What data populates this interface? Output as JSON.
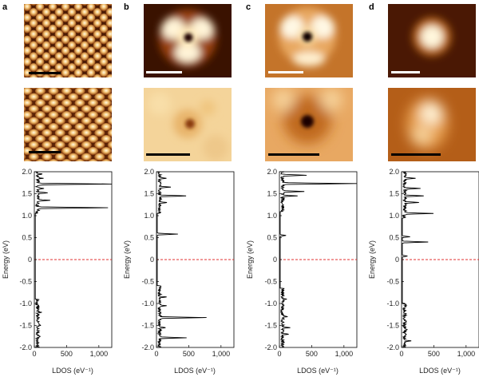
{
  "figure": {
    "panel_labels": [
      "a",
      "b",
      "c",
      "d"
    ],
    "colors": {
      "dark": "#3a1200",
      "mid": "#b8621c",
      "light": "#fff8e6",
      "line": "#000000",
      "fermi": "#e03030"
    }
  },
  "chart_data": [
    {
      "type": "line",
      "panel": "a",
      "xlabel": "LDOS (eV⁻¹)",
      "ylabel": "Energy (eV)",
      "xlim": [
        0,
        1200
      ],
      "ylim": [
        -2.0,
        2.0
      ],
      "xticks": [
        "0",
        "500",
        "1,000"
      ],
      "yticks": [
        "2.0",
        "1.5",
        "1.0",
        "0.5",
        "0",
        "-0.5",
        "-1.0",
        "-1.5",
        "-2.0"
      ],
      "fermi_level": 0,
      "peaks": [
        [
          1.72,
          1150
        ],
        [
          1.18,
          1080
        ],
        [
          1.35,
          200
        ],
        [
          1.52,
          150
        ],
        [
          1.62,
          100
        ],
        [
          1.85,
          80
        ],
        [
          1.95,
          70
        ],
        [
          -1.5,
          60
        ],
        [
          -1.75,
          55
        ],
        [
          -1.2,
          45
        ]
      ],
      "bands": [
        [
          -2.0,
          -0.9
        ],
        [
          1.05,
          2.0
        ]
      ],
      "baseline": 15
    },
    {
      "type": "line",
      "panel": "b",
      "xlabel": "LDOS (eV⁻¹)",
      "ylabel": "Energy (eV)",
      "xlim": [
        0,
        1200
      ],
      "ylim": [
        -2.0,
        2.0
      ],
      "xticks": [
        "0",
        "500",
        "1,000"
      ],
      "yticks": [
        "2.0",
        "1.5",
        "1.0",
        "0.5",
        "0",
        "-0.5",
        "-1.0",
        "-1.5",
        "-2.0"
      ],
      "fermi_level": 0,
      "peaks": [
        [
          -1.32,
          710
        ],
        [
          -1.78,
          420
        ],
        [
          1.45,
          430
        ],
        [
          0.58,
          320
        ],
        [
          1.65,
          150
        ],
        [
          1.3,
          120
        ],
        [
          1.85,
          110
        ],
        [
          -0.85,
          95
        ],
        [
          -1.05,
          90
        ],
        [
          -1.55,
          110
        ]
      ],
      "bands": [
        [
          -2.0,
          -0.6
        ],
        [
          1.05,
          2.0
        ]
      ],
      "baseline": 12
    },
    {
      "type": "line",
      "panel": "c",
      "xlabel": "LDOS (eV⁻¹)",
      "ylabel": "Energy (eV)",
      "xlim": [
        0,
        1200
      ],
      "ylim": [
        -2.0,
        2.0
      ],
      "xticks": [
        "0",
        "500",
        "1,000"
      ],
      "yticks": [
        "2.0",
        "1.5",
        "1.0",
        "0.5",
        "0",
        "-0.5",
        "-1.0",
        "-1.5",
        "-2.0"
      ],
      "fermi_level": 0,
      "peaks": [
        [
          1.73,
          1150
        ],
        [
          1.92,
          380
        ],
        [
          1.55,
          310
        ],
        [
          1.45,
          220
        ],
        [
          0.55,
          90
        ],
        [
          -1.55,
          95
        ],
        [
          -1.7,
          85
        ],
        [
          -1.3,
          70
        ],
        [
          -0.9,
          65
        ]
      ],
      "bands": [
        [
          -2.0,
          -0.65
        ],
        [
          1.1,
          2.0
        ]
      ],
      "baseline": 12
    },
    {
      "type": "line",
      "panel": "d",
      "xlabel": "LDOS (eV⁻¹)",
      "ylabel": "Energy (eV)",
      "xlim": [
        0,
        1200
      ],
      "ylim": [
        -2.0,
        2.0
      ],
      "xticks": [
        "0",
        "500",
        "1,000"
      ],
      "yticks": [
        "2.0",
        "1.5",
        "1.0",
        "0.5",
        "0",
        "-0.5",
        "-1.0",
        "-1.5",
        "-2.0"
      ],
      "fermi_level": 0,
      "peaks": [
        [
          1.05,
          420
        ],
        [
          0.4,
          400
        ],
        [
          1.45,
          300
        ],
        [
          1.62,
          250
        ],
        [
          1.3,
          220
        ],
        [
          1.85,
          150
        ],
        [
          0.52,
          120
        ],
        [
          0.08,
          80
        ],
        [
          -1.85,
          95
        ],
        [
          -1.6,
          60
        ]
      ],
      "bands": [
        [
          -2.0,
          -1.0
        ],
        [
          0.95,
          2.0
        ]
      ],
      "baseline": 12
    }
  ]
}
